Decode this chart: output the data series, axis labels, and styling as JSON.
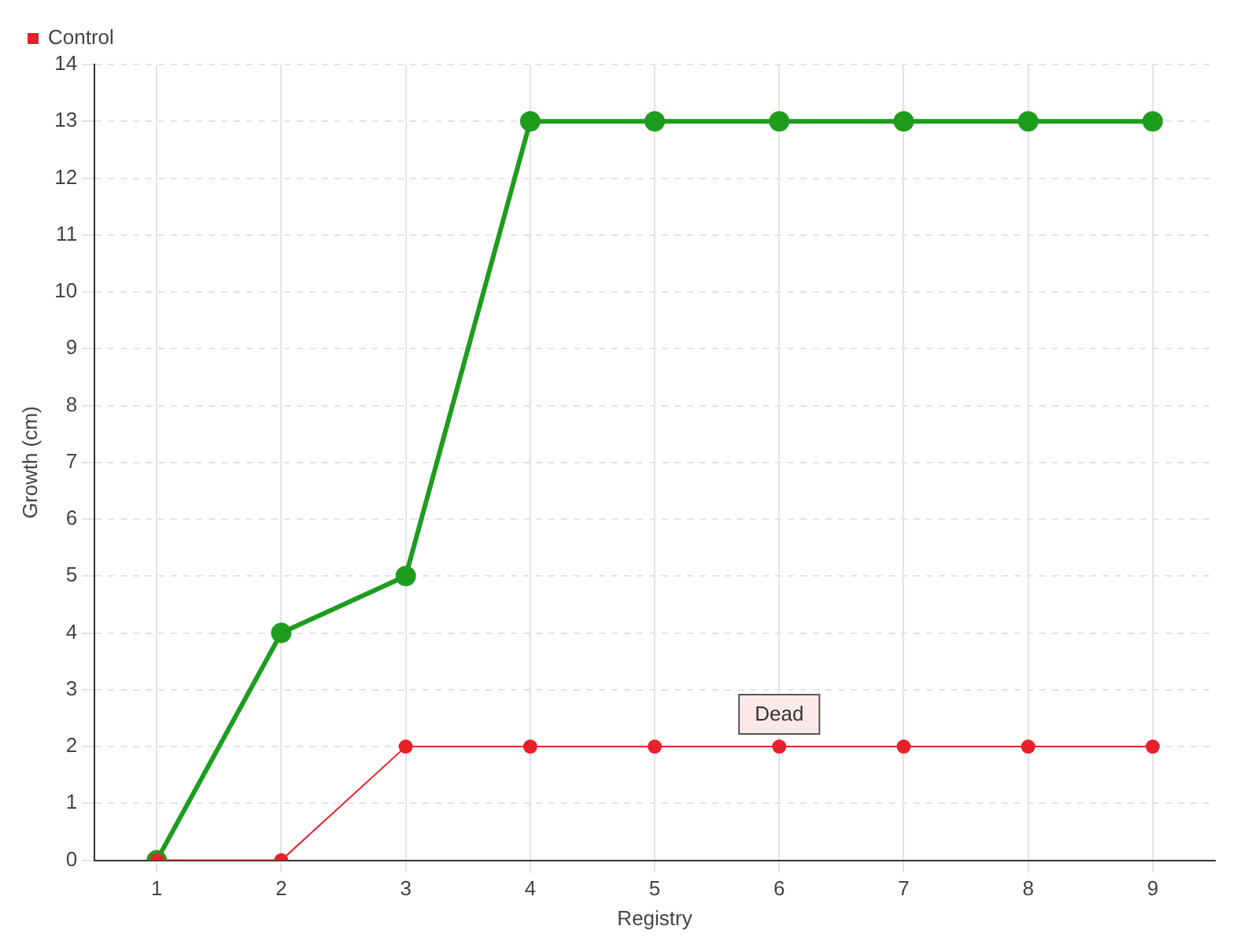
{
  "chart_data": {
    "type": "line",
    "xlabel": "Registry",
    "ylabel": "Growth (cm)",
    "categories": [
      "1",
      "2",
      "3",
      "4",
      "5",
      "6",
      "7",
      "8",
      "9"
    ],
    "series": [
      {
        "color": "#1e9c1e",
        "values": [
          0,
          4,
          5,
          13,
          13,
          13,
          13,
          13,
          13
        ]
      },
      {
        "name": "Control",
        "color": "#e8202a",
        "values": [
          0,
          0,
          2,
          2,
          2,
          2,
          2,
          2,
          2
        ]
      }
    ],
    "ylim": [
      0,
      14
    ],
    "yticks": [
      0,
      1,
      2,
      3,
      4,
      5,
      6,
      7,
      8,
      9,
      10,
      11,
      12,
      13,
      14
    ],
    "grid": true,
    "legend": "top left",
    "marker": "circle",
    "line_style": "solid",
    "annotations": [
      {
        "text": "Dead",
        "x": "6",
        "y": 2
      }
    ]
  }
}
